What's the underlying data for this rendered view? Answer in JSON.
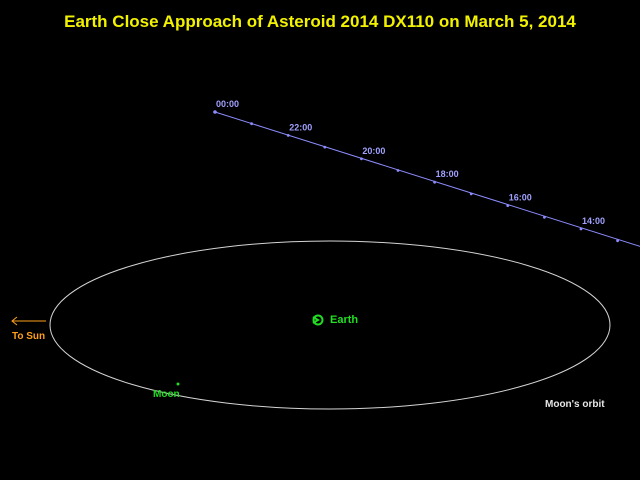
{
  "title": "Earth Close Approach of Asteroid 2014 DX110 on March 5, 2014",
  "trajectory": {
    "time_labels": [
      "00:00",
      "22:00",
      "20:00",
      "18:00",
      "16:00",
      "14:00"
    ]
  },
  "labels": {
    "earth": "Earth",
    "moon": "Moon",
    "moon_orbit": "Moon's orbit",
    "to_sun": "To Sun"
  },
  "colors": {
    "background": "#000000",
    "title": "#f2f200",
    "trajectory": "#8c8cff",
    "time_label": "#a0a0ff",
    "earth": "#22dd22",
    "moon": "#22dd22",
    "orbit": "#d4d4d4",
    "orbit_label": "#e6e6e6",
    "sun": "#ff9f1a"
  }
}
